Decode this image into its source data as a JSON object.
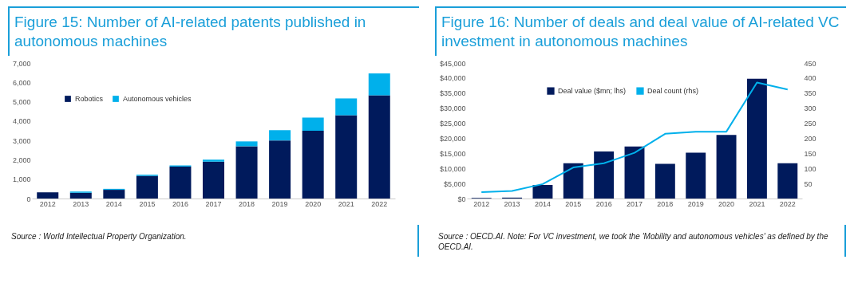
{
  "chart_data": [
    {
      "type": "bar",
      "title": "Figure 15: Number of AI-related patents published in autonomous machines",
      "stacked": true,
      "categories": [
        "2012",
        "2013",
        "2014",
        "2015",
        "2016",
        "2017",
        "2018",
        "2019",
        "2020",
        "2021",
        "2022"
      ],
      "series": [
        {
          "name": "Robotics",
          "color": "#001a5c",
          "values": [
            320,
            300,
            450,
            1170,
            1650,
            1900,
            2700,
            3000,
            3500,
            4300,
            5330
          ]
        },
        {
          "name": "Autonomous vehicles",
          "color": "#00b0eb",
          "values": [
            null,
            60,
            50,
            60,
            60,
            110,
            250,
            530,
            680,
            870,
            1130
          ]
        }
      ],
      "ylim": [
        0,
        7000
      ],
      "yticks": [
        0,
        {
          "value": 1000,
          "label": "1,000"
        },
        {
          "value": 2000,
          "label": "2,000"
        },
        {
          "value": 3000,
          "label": "3,000"
        },
        {
          "value": 4000,
          "label": "4,000"
        },
        {
          "value": 5000,
          "label": "5,000"
        },
        {
          "value": 6000,
          "label": "6,000"
        },
        {
          "value": 7000,
          "label": "7,000"
        }
      ],
      "legend": "top left",
      "annotations": [
        "Source : World Intellectual Property Organization."
      ]
    },
    {
      "type": "bar",
      "title": "Figure 16: Number of deals and deal value of AI-related VC investment in autonomous machines",
      "categories": [
        "2012",
        "2013",
        "2014",
        "2015",
        "2016",
        "2017",
        "2018",
        "2019",
        "2020",
        "2021",
        "2022"
      ],
      "series": [
        {
          "name": "Deal value ($mn; lhs)",
          "color": "#001a5c",
          "values": [
            200,
            300,
            4500,
            11700,
            15600,
            17300,
            11500,
            15200,
            21100,
            39800,
            11700
          ]
        },
        {
          "name": "Deal count (rhs)",
          "type": "line",
          "axis": "y2",
          "color": "#00b0eb",
          "values": [
            21,
            25,
            48,
            103,
            117,
            152,
            215,
            222,
            222,
            385,
            362
          ]
        }
      ],
      "ylim": [
        0,
        45000
      ],
      "yticks": [
        {
          "value": 0,
          "label": "$0"
        },
        {
          "value": 5000,
          "label": "$5,000"
        },
        {
          "value": 10000,
          "label": "$10,000"
        },
        {
          "value": 15000,
          "label": "$15,000"
        },
        {
          "value": 20000,
          "label": "$20,000"
        },
        {
          "value": 25000,
          "label": "$25,000"
        },
        {
          "value": 30000,
          "label": "$30,000"
        },
        {
          "value": 35000,
          "label": "$35,000"
        },
        {
          "value": 40000,
          "label": "$40,000"
        },
        {
          "value": 45000,
          "label": "$45,000"
        }
      ],
      "y2lim": [
        0,
        450
      ],
      "y2ticks": [
        50,
        100,
        150,
        200,
        250,
        300,
        350,
        400,
        450
      ],
      "legend": "top",
      "annotations": [
        "Source : OECD.AI. Note: For VC investment, we took the 'Mobility and autonomous vehicles' as defined by the OECD.AI."
      ]
    }
  ]
}
